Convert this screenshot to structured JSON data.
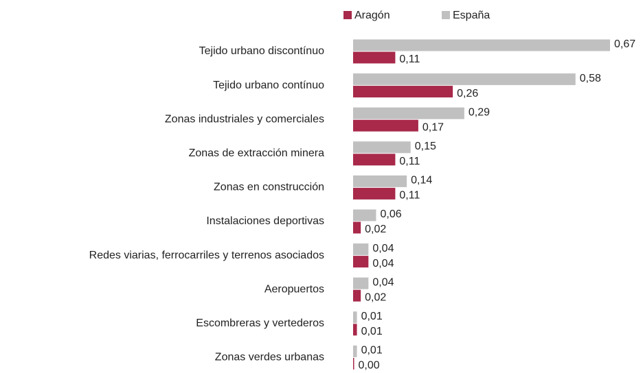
{
  "chart_data": {
    "type": "bar",
    "orientation": "horizontal",
    "categories": [
      "Tejido urbano discontínuo",
      "Tejido urbano contínuo",
      "Zonas industriales y comerciales",
      "Zonas de extracción minera",
      "Zonas en construcción",
      "Instalaciones deportivas",
      "Redes viarias, ferrocarriles y terrenos asociados",
      "Aeropuertos",
      "Escombreras y vertederos",
      "Zonas verdes urbanas"
    ],
    "series": [
      {
        "name": "Aragón",
        "color": "#a8294a",
        "values": [
          0.11,
          0.26,
          0.17,
          0.11,
          0.11,
          0.02,
          0.04,
          0.02,
          0.01,
          0.0
        ],
        "value_labels": [
          "0,11",
          "0,26",
          "0,17",
          "0,11",
          "0,11",
          "0,02",
          "0,04",
          "0,02",
          "0,01",
          "0,00"
        ]
      },
      {
        "name": "España",
        "color": "#c0c0c0",
        "values": [
          0.67,
          0.58,
          0.29,
          0.15,
          0.14,
          0.06,
          0.04,
          0.04,
          0.01,
          0.01
        ],
        "value_labels": [
          "0,67",
          "0,58",
          "0,29",
          "0,15",
          "0,14",
          "0,06",
          "0,04",
          "0,04",
          "0,01",
          "0,01"
        ]
      }
    ],
    "legend": "top"
  }
}
